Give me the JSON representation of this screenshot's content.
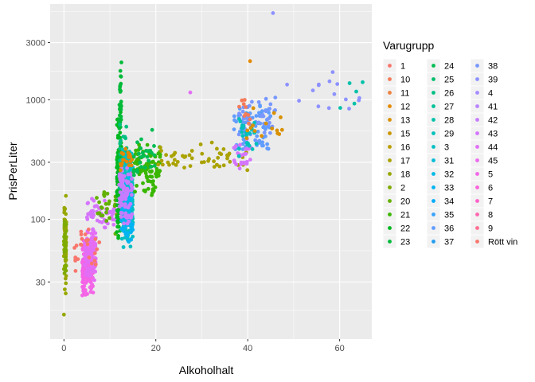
{
  "chart_data": {
    "type": "scatter",
    "xlabel": "Alkoholhalt",
    "ylabel": "PrisPerLiter",
    "xlim": [
      -3,
      67
    ],
    "ylim_log10": [
      1.0,
      3.8
    ],
    "y_scale": "log10",
    "grid": true,
    "legend_position": "right",
    "x_ticks": [
      0,
      20,
      40,
      60
    ],
    "x_tick_labels": [
      "0",
      "20",
      "40",
      "60"
    ],
    "y_ticks": [
      30,
      100,
      300,
      1000,
      3000
    ],
    "y_tick_labels": [
      "30",
      "100",
      "300",
      "1000",
      "3000"
    ],
    "legend": {
      "title": "Varugrupp",
      "columns": [
        [
          {
            "label": "1",
            "color": "#F8766D"
          },
          {
            "label": "10",
            "color": "#F47B59"
          },
          {
            "label": "11",
            "color": "#ED813E"
          },
          {
            "label": "12",
            "color": "#E38900"
          },
          {
            "label": "13",
            "color": "#D89000"
          },
          {
            "label": "15",
            "color": "#CB9600"
          },
          {
            "label": "16",
            "color": "#BB9D00"
          },
          {
            "label": "17",
            "color": "#AAA200"
          },
          {
            "label": "18",
            "color": "#97A700"
          },
          {
            "label": "2",
            "color": "#7FAB00"
          },
          {
            "label": "20",
            "color": "#63B000"
          },
          {
            "label": "21",
            "color": "#39B600"
          },
          {
            "label": "22",
            "color": "#00B81F"
          },
          {
            "label": "23",
            "color": "#00BA38"
          }
        ],
        [
          {
            "label": "24",
            "color": "#00BC52"
          },
          {
            "label": "25",
            "color": "#00BE6C"
          },
          {
            "label": "26",
            "color": "#00BF83"
          },
          {
            "label": "27",
            "color": "#00C097"
          },
          {
            "label": "28",
            "color": "#00C1AA"
          },
          {
            "label": "29",
            "color": "#00C0BB"
          },
          {
            "label": "3",
            "color": "#00BFC4"
          },
          {
            "label": "31",
            "color": "#00BCD8"
          },
          {
            "label": "32",
            "color": "#00B8E7"
          },
          {
            "label": "33",
            "color": "#00B3F2"
          },
          {
            "label": "34",
            "color": "#00ACFC"
          },
          {
            "label": "35",
            "color": "#35A2FF"
          },
          {
            "label": "36",
            "color": "#619CFF"
          },
          {
            "label": "37",
            "color": "#1F9BF0"
          }
        ],
        [
          {
            "label": "38",
            "color": "#7897FF"
          },
          {
            "label": "39",
            "color": "#8E92FF"
          },
          {
            "label": "4",
            "color": "#A58AFF"
          },
          {
            "label": "41",
            "color": "#B983FF"
          },
          {
            "label": "42",
            "color": "#C77CFF"
          },
          {
            "label": "43",
            "color": "#D575FE"
          },
          {
            "label": "44",
            "color": "#E36EF6"
          },
          {
            "label": "45",
            "color": "#EC69EF"
          },
          {
            "label": "5",
            "color": "#F365E6"
          },
          {
            "label": "6",
            "color": "#FA62DB"
          },
          {
            "label": "7",
            "color": "#FF61C9"
          },
          {
            "label": "8",
            "color": "#FF64B0"
          },
          {
            "label": "9",
            "color": "#FF6C91"
          },
          {
            "label": "Rött vin",
            "color": "#F8766D"
          }
        ]
      ]
    },
    "clusters": [
      {
        "group": "18",
        "x": [
          0,
          0.5
        ],
        "y": [
          20,
          200
        ],
        "n": 70
      },
      {
        "group": "2",
        "x": [
          0,
          0.5
        ],
        "y": [
          30,
          120
        ],
        "n": 30
      },
      {
        "group": "5",
        "x": [
          4,
          6.5
        ],
        "y": [
          22,
          80
        ],
        "n": 180
      },
      {
        "group": "44",
        "x": [
          4.5,
          7
        ],
        "y": [
          30,
          90
        ],
        "n": 80
      },
      {
        "group": "1",
        "x": [
          2,
          8
        ],
        "y": [
          35,
          90
        ],
        "n": 25
      },
      {
        "group": "43",
        "x": [
          5,
          12
        ],
        "y": [
          80,
          160
        ],
        "n": 60
      },
      {
        "group": "20",
        "x": [
          7,
          13
        ],
        "y": [
          70,
          200
        ],
        "n": 30
      },
      {
        "group": "22",
        "x": [
          11.5,
          12.5
        ],
        "y": [
          60,
          900
        ],
        "n": 120
      },
      {
        "group": "23",
        "x": [
          12,
          12.5
        ],
        "y": [
          300,
          2000
        ],
        "n": 30
      },
      {
        "group": "26",
        "x": [
          12,
          14
        ],
        "y": [
          150,
          700
        ],
        "n": 50
      },
      {
        "group": "3",
        "x": [
          12.5,
          15
        ],
        "y": [
          55,
          400
        ],
        "n": 260
      },
      {
        "group": "33",
        "x": [
          12.5,
          15
        ],
        "y": [
          60,
          250
        ],
        "n": 100
      },
      {
        "group": "42",
        "x": [
          12,
          15
        ],
        "y": [
          80,
          300
        ],
        "n": 80
      },
      {
        "group": "12",
        "x": [
          12,
          15
        ],
        "y": [
          250,
          400
        ],
        "n": 20
      },
      {
        "group": "21",
        "x": [
          15,
          21
        ],
        "y": [
          150,
          450
        ],
        "n": 90
      },
      {
        "group": "24",
        "x": [
          15,
          20
        ],
        "y": [
          200,
          600
        ],
        "n": 30
      },
      {
        "group": "17",
        "x": [
          20,
          40
        ],
        "y": [
          250,
          450
        ],
        "n": 50
      },
      {
        "group": "36",
        "x": [
          37,
          45
        ],
        "y": [
          350,
          1000
        ],
        "n": 70
      },
      {
        "group": "38",
        "x": [
          38,
          46
        ],
        "y": [
          400,
          1200
        ],
        "n": 40
      },
      {
        "group": "43",
        "x": [
          37,
          41
        ],
        "y": [
          250,
          500
        ],
        "n": 25
      },
      {
        "group": "29",
        "x": [
          38,
          42
        ],
        "y": [
          300,
          900
        ],
        "n": 25
      },
      {
        "group": "13",
        "x": [
          39,
          48
        ],
        "y": [
          400,
          900
        ],
        "n": 15
      },
      {
        "group": "10",
        "x": [
          38,
          42
        ],
        "y": [
          600,
          1100
        ],
        "n": 10
      },
      {
        "group": "39",
        "x": [
          48,
          65
        ],
        "y": [
          700,
          1700
        ],
        "n": 14
      },
      {
        "group": "28",
        "x": [
          60,
          65
        ],
        "y": [
          800,
          1500
        ],
        "n": 4
      }
    ],
    "notable_points": [
      {
        "x": 45.5,
        "y": 5300,
        "group": "39"
      },
      {
        "x": 40.5,
        "y": 2100,
        "group": "12"
      },
      {
        "x": 12.5,
        "y": 2050,
        "group": "23"
      },
      {
        "x": 58.5,
        "y": 1700,
        "group": "39"
      },
      {
        "x": 65,
        "y": 1400,
        "group": "28"
      },
      {
        "x": 27.5,
        "y": 1150,
        "group": "44"
      },
      {
        "x": 0,
        "y": 16,
        "group": "18"
      }
    ]
  }
}
